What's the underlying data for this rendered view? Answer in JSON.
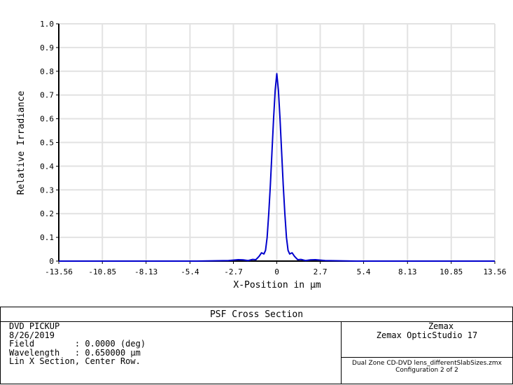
{
  "chart_data": {
    "type": "line",
    "title": "PSF Cross Section",
    "xlabel": "X-Position in µm",
    "ylabel": "Relative Irradiance",
    "xlim": [
      -13.56,
      13.56
    ],
    "ylim": [
      0,
      1.0
    ],
    "x_ticks": [
      -13.56,
      -10.85,
      -8.13,
      -5.4,
      -2.7,
      0,
      2.7,
      5.4,
      8.13,
      10.85,
      13.56
    ],
    "x_tick_labels": [
      "-13.56",
      "-10.85",
      "-8.13",
      "-5.4",
      "-2.7",
      "0",
      "2.7",
      "5.4",
      "8.13",
      "10.85",
      "13.56"
    ],
    "y_ticks": [
      0,
      0.1,
      0.2,
      0.3,
      0.4,
      0.5,
      0.6,
      0.7,
      0.8,
      0.9,
      1.0
    ],
    "y_tick_labels": [
      "0",
      "0.1",
      "0.2",
      "0.3",
      "0.4",
      "0.5",
      "0.6",
      "0.7",
      "0.8",
      "0.9",
      "1.0"
    ],
    "grid": true,
    "series": [
      {
        "color": "#0000cc",
        "x": [
          -13.56,
          -9.0,
          -5.0,
          -3.0,
          -2.4,
          -2.1,
          -1.8,
          -1.5,
          -1.3,
          -1.1,
          -0.95,
          -0.8,
          -0.7,
          -0.6,
          -0.5,
          -0.4,
          -0.3,
          -0.2,
          -0.1,
          0.0,
          0.1,
          0.2,
          0.3,
          0.4,
          0.5,
          0.6,
          0.7,
          0.8,
          0.95,
          1.1,
          1.3,
          1.5,
          1.8,
          2.1,
          2.4,
          3.0,
          5.0,
          9.0,
          13.56
        ],
        "y": [
          0.0,
          0.0,
          0.0,
          0.002,
          0.006,
          0.005,
          0.002,
          0.007,
          0.006,
          0.02,
          0.035,
          0.03,
          0.045,
          0.1,
          0.2,
          0.32,
          0.46,
          0.6,
          0.72,
          0.79,
          0.72,
          0.6,
          0.46,
          0.32,
          0.2,
          0.1,
          0.045,
          0.03,
          0.035,
          0.02,
          0.006,
          0.007,
          0.002,
          0.005,
          0.006,
          0.002,
          0.0,
          0.0,
          0.0
        ]
      }
    ]
  },
  "info": {
    "title": "PSF Cross Section",
    "lines": [
      "DVD PICKUP",
      "8/26/2019",
      "Field        : 0.0000 (deg)",
      "Wavelength   : 0.650000 µm",
      "Lin X Section, Center Row."
    ],
    "company": "Zemax",
    "product": "Zemax OpticStudio 17",
    "file": "Dual Zone CD-DVD lens_differentSlabSizes.zmx",
    "config": "Configuration 2 of 2"
  }
}
